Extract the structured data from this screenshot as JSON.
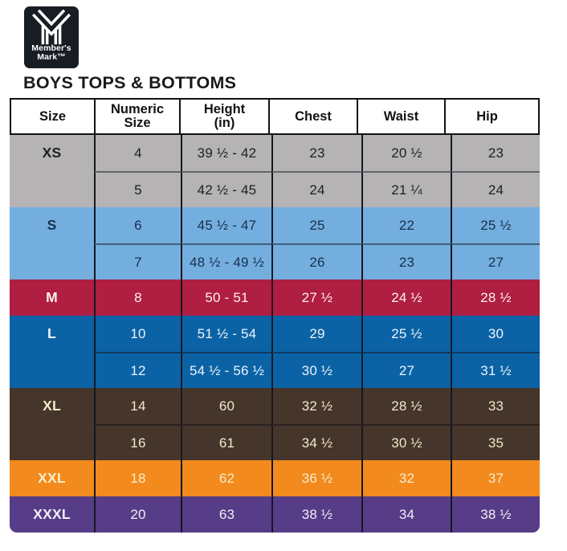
{
  "logo": {
    "brand_line1": "Member's",
    "brand_line2": "Mark™",
    "background_color": "#181c23",
    "mark_color": "#ffffff"
  },
  "chart_data": {
    "type": "table",
    "title": "BOYS TOPS & BOTTOMS",
    "columns": [
      "Size",
      "Numeric Size",
      "Height (in)",
      "Chest",
      "Waist",
      "Hip"
    ],
    "grid_line_color": "#141822",
    "header_bg": "#ffffff",
    "header_fg": "#121212",
    "groups": [
      {
        "size": "XS",
        "bg": "#b5b3b4",
        "fg": "#1f1f1f",
        "rows": [
          [
            "4",
            "39 ½ - 42",
            "23",
            "20 ½",
            "23"
          ],
          [
            "5",
            "42 ½ - 45",
            "24",
            "21 ¼",
            "24"
          ]
        ]
      },
      {
        "size": "S",
        "bg": "#74aede",
        "fg": "#16304f",
        "rows": [
          [
            "6",
            "45 ½ - 47",
            "25",
            "22",
            "25 ½"
          ],
          [
            "7",
            "48 ½ - 49 ½",
            "26",
            "23",
            "27"
          ]
        ]
      },
      {
        "size": "M",
        "bg": "#b01e41",
        "fg": "#fdf2f2",
        "rows": [
          [
            "8",
            "50 - 51",
            "27 ½",
            "24 ½",
            "28 ½"
          ]
        ]
      },
      {
        "size": "L",
        "bg": "#0b63a6",
        "fg": "#edf4fb",
        "rows": [
          [
            "10",
            "51 ½ - 54",
            "29",
            "25 ½",
            "30"
          ],
          [
            "12",
            "54 ½ - 56 ½",
            "30 ½",
            "27",
            "31 ½"
          ]
        ]
      },
      {
        "size": "XL",
        "bg": "#46352a",
        "fg": "#f3e7cc",
        "rows": [
          [
            "14",
            "60",
            "32 ½",
            "28 ½",
            "33"
          ],
          [
            "16",
            "61",
            "34 ½",
            "30 ½",
            "35"
          ]
        ]
      },
      {
        "size": "XXL",
        "bg": "#f28a1e",
        "fg": "#fbedc9",
        "rows": [
          [
            "18",
            "62",
            "36 ½",
            "32",
            "37"
          ]
        ]
      },
      {
        "size": "XXXL",
        "bg": "#573d87",
        "fg": "#f2edf8",
        "rows": [
          [
            "20",
            "63",
            "38 ½",
            "34",
            "38 ½"
          ]
        ]
      }
    ]
  }
}
